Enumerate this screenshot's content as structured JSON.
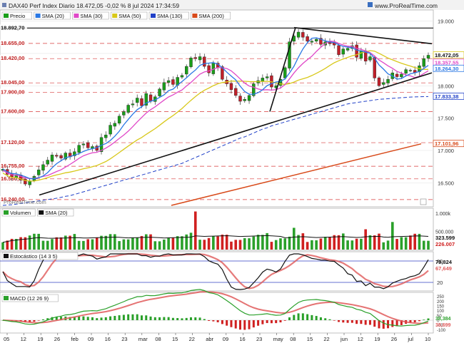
{
  "header": {
    "title": "DAX40 Perf Index Diario 18.472,05 -0,02 % 8 jul 2024 17:34:59",
    "url": "www.ProRealTime.com"
  },
  "watermark": "ProRealTime.com",
  "colors": {
    "price_up": "#1a9e1a",
    "price_down": "#c0202a",
    "sma20": "#2a78e4",
    "sma30": "#e048c8",
    "sma50": "#d8c81a",
    "sma130": "#2040c8",
    "sma200": "#d84a1a",
    "volume_up": "#2aa02a",
    "volume_down": "#d02020",
    "stoch_k": "#111111",
    "stoch_d": "#e05a5a",
    "macd": "#2aa02a",
    "signal": "#e05a5a"
  },
  "chart_data": [
    {
      "type": "candlestick",
      "legend": [
        "Precio",
        "SMA (20)",
        "SMA (30)",
        "SMA (50)",
        "SMA (130)",
        "SMA (200)"
      ],
      "y_ticks": [
        "19.000",
        "18.500",
        "18.000",
        "17.500",
        "17.000",
        "16.500"
      ],
      "ylim": [
        16150,
        19150
      ],
      "x_ticks": [
        "05",
        "12",
        "19",
        "26",
        "feb",
        "09",
        "16",
        "23",
        "mar",
        "08",
        "15",
        "22",
        "abr",
        "09",
        "16",
        "23",
        "may",
        "08",
        "15",
        "22",
        "jun",
        "12",
        "19",
        "26",
        "jul",
        "10"
      ],
      "level_labels": [
        {
          "text": "18.892,70",
          "value": 18892.7
        },
        {
          "text": "18.655,00",
          "value": 18655
        },
        {
          "text": "18.420,00",
          "value": 18420
        },
        {
          "text": "18.045,00",
          "value": 18045
        },
        {
          "text": "17.900,00",
          "value": 17900
        },
        {
          "text": "17.600,00",
          "value": 17600
        },
        {
          "text": "17.120,00",
          "value": 17120
        },
        {
          "text": "16.755,00",
          "value": 16755
        },
        {
          "text": "16.560,00",
          "value": 16560
        },
        {
          "text": "16.240,00",
          "value": 16240
        }
      ],
      "right_labels": [
        {
          "text": "18.472,05",
          "value": 18472.05,
          "color": "#d8c81a"
        },
        {
          "text": "18.357,55",
          "value": 18357.55,
          "color": "#e048c8"
        },
        {
          "text": "18.264,30",
          "value": 18264.3,
          "color": "#2a78e4"
        },
        {
          "text": "17.833,38",
          "value": 17833.38,
          "color": "#2040c8"
        },
        {
          "text": "17.101,96",
          "value": 17101.96,
          "color": "#d84a1a"
        }
      ],
      "close": [
        16710,
        16630,
        16590,
        16620,
        16540,
        16480,
        16530,
        16600,
        16700,
        16780,
        16850,
        16930,
        16910,
        16880,
        16960,
        16900,
        16980,
        17080,
        17100,
        17040,
        17060,
        17000,
        17200,
        17240,
        17390,
        17420,
        17530,
        17600,
        17700,
        17720,
        17810,
        17690,
        17880,
        17760,
        17830,
        17950,
        18050,
        18080,
        18020,
        18130,
        18160,
        18300,
        18430,
        18420,
        18450,
        18300,
        18200,
        18350,
        18280,
        18100,
        18030,
        17940,
        17850,
        17760,
        17790,
        17850,
        18030,
        18080,
        18120,
        18140,
        17980,
        18000,
        18100,
        18280,
        18680,
        18770,
        18830,
        18750,
        18690,
        18690,
        18720,
        18640,
        18680,
        18650,
        18630,
        18480,
        18570,
        18580,
        18620,
        18440,
        18540,
        18380,
        18450,
        18120,
        18000,
        18050,
        18100,
        18200,
        18140,
        18180,
        18250,
        18240,
        18200,
        18310,
        18420,
        18472
      ],
      "sma130": [
        16150,
        16155,
        16160,
        16170,
        16180,
        16190,
        16200,
        16210,
        16220,
        16230,
        16240,
        16250,
        16260,
        16275,
        16290,
        16300,
        16320,
        16340,
        16360,
        16380,
        16400,
        16420,
        16440,
        16460,
        16480,
        16500,
        16520,
        16540,
        16560,
        16580,
        16600,
        16620,
        16640,
        16660,
        16680,
        16700,
        16720,
        16740,
        16760,
        16780,
        16800,
        16830,
        16860,
        16890,
        16920,
        16950,
        16980,
        17010,
        17040,
        17070,
        17100,
        17130,
        17160,
        17190,
        17210,
        17240,
        17270,
        17300,
        17330,
        17350,
        17380,
        17400,
        17420,
        17440,
        17460,
        17480,
        17500,
        17520,
        17540,
        17560,
        17580,
        17600,
        17620,
        17640,
        17660,
        17680,
        17700,
        17720,
        17730,
        17740,
        17750,
        17760,
        17770,
        17780,
        17790,
        17795,
        17800,
        17805,
        17810,
        17815,
        17820,
        17825,
        17828,
        17830,
        17832,
        17833
      ],
      "sma200_segment": {
        "from": [
          240,
          16150
        ],
        "to": [
          590,
          17102
        ]
      },
      "trendlines": [
        {
          "from": [
            55,
            16310
          ],
          "to": [
            605,
            18200
          ]
        },
        {
          "from": [
            412,
            18900
          ],
          "to": [
            605,
            18650
          ]
        },
        {
          "from": [
            378,
            17600
          ],
          "to": [
            414,
            18900
          ]
        }
      ]
    },
    {
      "type": "bar",
      "legend": [
        "Volumen",
        "SMA (20)"
      ],
      "y_ticks": [
        "1.000k",
        "500.000"
      ],
      "right_labels": [
        {
          "text": "323.599",
          "color": "#111111"
        },
        {
          "text": "226.007",
          "color": "#d02020"
        }
      ],
      "ylim": [
        0,
        1100
      ]
    },
    {
      "type": "line",
      "legend": [
        "Estocástico (14 3 5)"
      ],
      "y_ticks": [
        "80",
        "20"
      ],
      "right_labels": [
        {
          "text": "79,824",
          "color": "#111111"
        },
        {
          "text": "67,649",
          "color": "#e05a5a"
        }
      ],
      "ylim": [
        0,
        100
      ]
    },
    {
      "type": "line",
      "legend": [
        "MACD (12 26 9)"
      ],
      "y_ticks": [
        "250",
        "200",
        "150",
        "100",
        "50",
        "0",
        "-50",
        "-100"
      ],
      "right_labels": [
        {
          "text": "38,384",
          "color": "#2aa02a"
        },
        {
          "text": "38,699",
          "color": "#e05a5a"
        }
      ],
      "ylim": [
        -120,
        270
      ]
    }
  ]
}
